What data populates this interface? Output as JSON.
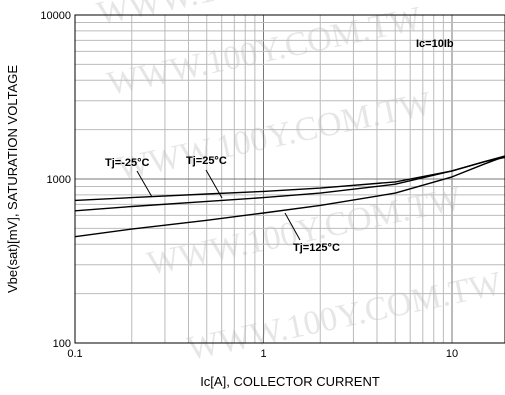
{
  "chart_data": {
    "type": "line",
    "title": "",
    "xlabel": "Ic[A], COLLECTOR CURRENT",
    "ylabel": "Vbe(sat)[mV], SATURATION VOLTAGE",
    "x_scale": "log",
    "y_scale": "log",
    "xlim": [
      0.1,
      20
    ],
    "ylim": [
      100,
      10000
    ],
    "x_ticks": [
      "0.1",
      "1",
      "10"
    ],
    "y_ticks": [
      "100",
      "1000",
      "10000"
    ],
    "grid": true,
    "condition": "Ic=10Ib",
    "series": [
      {
        "name": "Tj=-25°C",
        "x": [
          0.1,
          0.2,
          0.5,
          1,
          2,
          5,
          10,
          15,
          20
        ],
        "y": [
          740,
          770,
          810,
          840,
          880,
          960,
          1120,
          1280,
          1400
        ]
      },
      {
        "name": "Tj=25°C",
        "x": [
          0.1,
          0.2,
          0.5,
          1,
          2,
          5,
          10,
          15,
          20
        ],
        "y": [
          640,
          680,
          730,
          770,
          820,
          930,
          1120,
          1280,
          1370
        ]
      },
      {
        "name": "Tj=125°C",
        "x": [
          0.1,
          0.2,
          0.5,
          1,
          2,
          5,
          10,
          15,
          20
        ],
        "y": [
          445,
          495,
          560,
          620,
          690,
          820,
          1030,
          1240,
          1400
        ]
      }
    ],
    "annotations": [
      {
        "text": "Tj=-25°C",
        "series": 0
      },
      {
        "text": "Tj=25°C",
        "series": 1
      },
      {
        "text": "Tj=125°C",
        "series": 2
      },
      {
        "text": "Ic=10Ib",
        "series": null
      }
    ]
  }
}
